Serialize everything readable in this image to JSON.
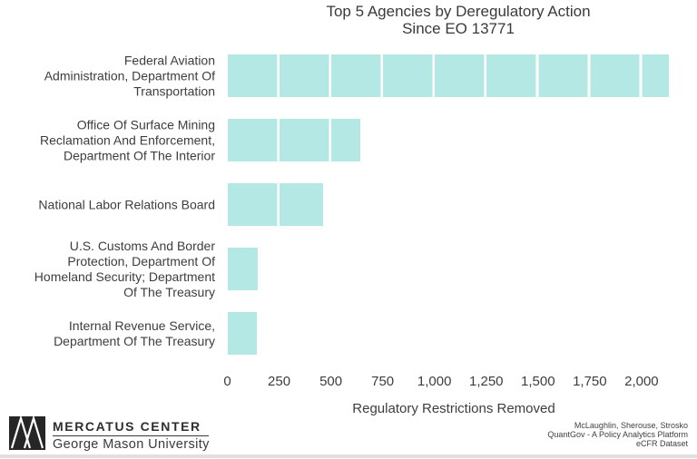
{
  "chart_title": "Top 5 Agencies by Deregulatory Action\nSince EO 13771",
  "chart_data": {
    "type": "bar",
    "orientation": "horizontal",
    "title": "Top 5 Agencies by Deregulatory Action Since EO 13771",
    "xlabel": "Regulatory Restrictions Removed",
    "categories": [
      "Federal Aviation Administration, Department Of Transportation",
      "Office Of Surface Mining Reclamation And Enforcement, Department Of The Interior",
      "National Labor Relations Board",
      "U.S. Customs And Border Protection, Department Of Homeland Security; Department Of The Treasury",
      "Internal Revenue Service, Department Of The Treasury"
    ],
    "label_lines": [
      "Federal Aviation\nAdministration, Department Of\nTransportation",
      "Office Of Surface Mining\nReclamation And Enforcement,\nDepartment Of The Interior",
      "National Labor Relations Board",
      "U.S. Customs And Border\nProtection, Department Of\nHomeland Security; Department\nOf The Treasury",
      "Internal Revenue Service,\nDepartment Of The Treasury"
    ],
    "values": [
      2130,
      640,
      460,
      145,
      140
    ],
    "xticks": [
      0,
      250,
      500,
      750,
      1000,
      1250,
      1500,
      1750,
      2000
    ],
    "xtick_labels": [
      "0",
      "250",
      "500",
      "750",
      "1,000",
      "1,250",
      "1,500",
      "1,750",
      "2,000"
    ],
    "xlim": [
      0,
      2250
    ],
    "bar_color": "#b4e8e4",
    "gridlines": "white vertical lines over bars at each 250 interval",
    "legend": "none"
  },
  "footer": {
    "credits": "McLaughlin, Sherouse, Strosko\nQuantGov - A Policy Analytics Platform\neCFR Dataset",
    "logo_title": "MERCATUS CENTER",
    "logo_subtitle": "George Mason University"
  },
  "colors": {
    "background": "#ffffff",
    "bar": "#b4e8e4",
    "text": "#3d3d3d",
    "logo_dark": "#262626"
  }
}
